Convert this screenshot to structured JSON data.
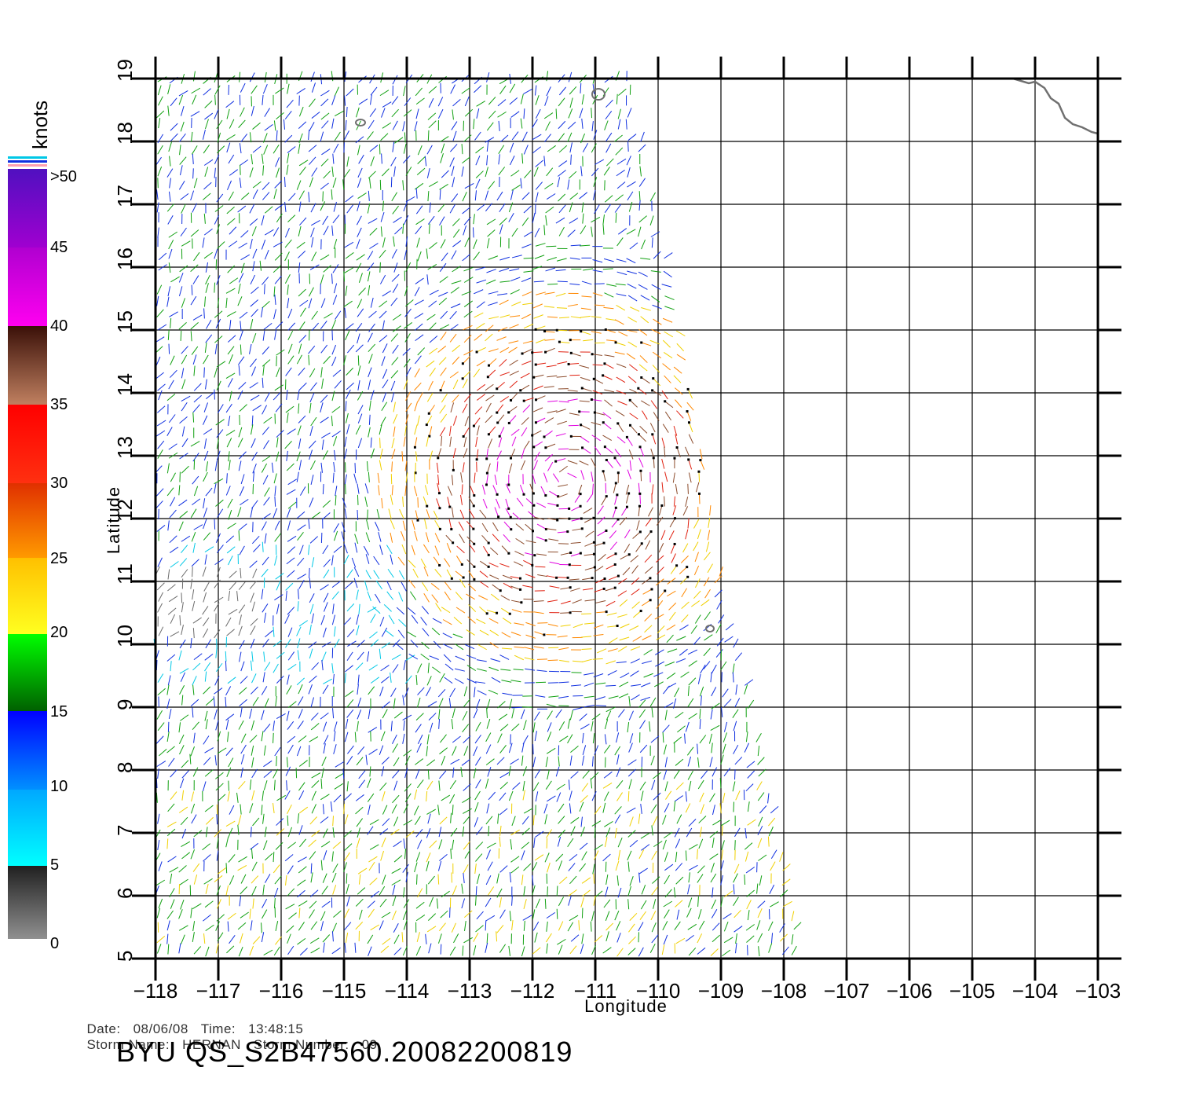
{
  "colors": {
    "gray": "#6b6b6b",
    "cyan": "#00c8e6",
    "blue": "#1030e0",
    "green": "#10a010",
    "yellow": "#f0d000",
    "orange": "#ff8800",
    "red": "#e02010",
    "brown": "#8b4a2a",
    "magenta": "#e000e0",
    "purple": "#7010d0"
  },
  "legend": {
    "unit": "knots",
    "labels": [
      ">50",
      "45",
      "40",
      "35",
      "30",
      "25",
      "20",
      "15",
      "10",
      "5",
      "0"
    ]
  },
  "map": {
    "x_axis_label": "Longitude",
    "y_axis_label": "Latitude",
    "lon_ticks": [
      "−118",
      "−117",
      "−116",
      "−115",
      "−114",
      "−113",
      "−112",
      "−111",
      "−110",
      "−109",
      "−108",
      "−107",
      "−106",
      "−105",
      "−104",
      "−103"
    ],
    "lat_ticks": [
      "5",
      "6",
      "7",
      "8",
      "9",
      "10",
      "11",
      "12",
      "13",
      "14",
      "15",
      "16",
      "17",
      "18",
      "19"
    ],
    "lon_range": [
      -118,
      -103
    ],
    "lat_range": [
      5,
      19
    ]
  },
  "meta": {
    "date_label": "Date:",
    "date_value": "08/06/08",
    "time_label": "Time:",
    "time_value": "13:48:15",
    "storm_name_label": "Storm Name:",
    "storm_name_value": "HERNAN",
    "storm_number_label": "Storm Number:",
    "storm_number_value": "09"
  },
  "footer": {
    "title": "BYU QS_S2B47560.20082200819"
  }
}
